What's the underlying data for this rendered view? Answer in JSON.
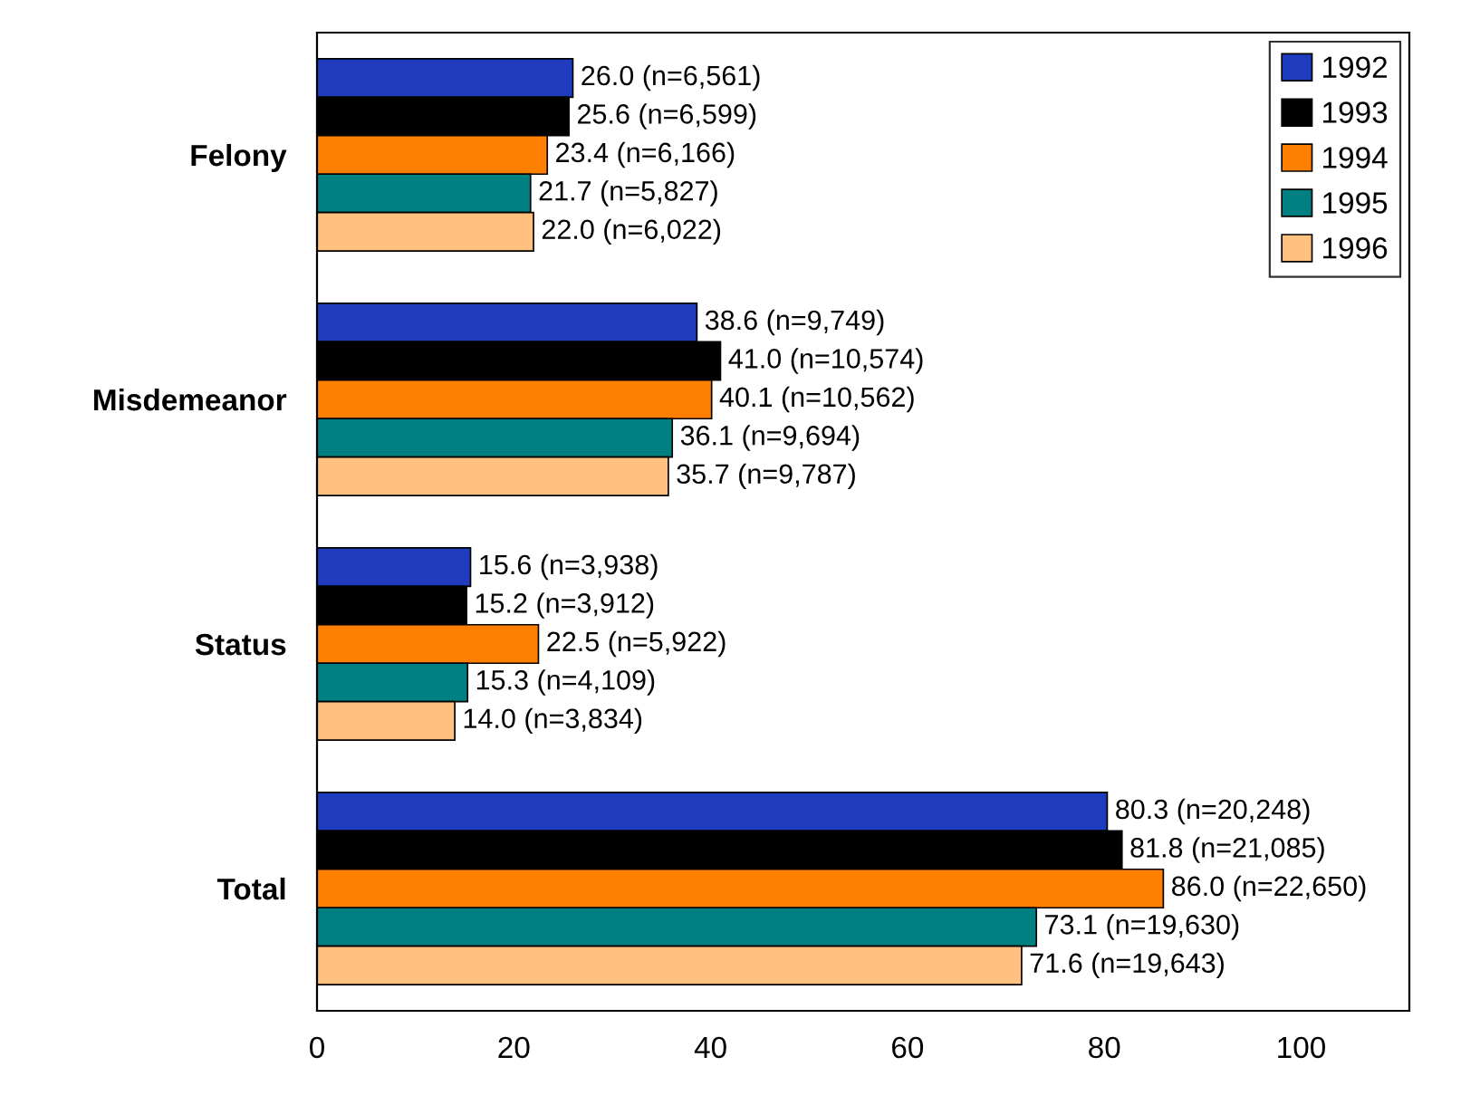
{
  "chart_data": {
    "type": "bar",
    "orientation": "horizontal",
    "categories": [
      "Felony",
      "Misdemeanor",
      "Status",
      "Total"
    ],
    "series": [
      {
        "name": "1992",
        "color": "#1f3cbf",
        "values": [
          26.0,
          38.6,
          15.6,
          80.3
        ],
        "value_labels": [
          "26.0 (n=6,561)",
          "38.6 (n=9,749)",
          "15.6 (n=3,938)",
          "80.3 (n=20,248)"
        ]
      },
      {
        "name": "1993",
        "color": "#000000",
        "values": [
          25.6,
          41.0,
          15.2,
          81.8
        ],
        "value_labels": [
          "25.6 (n=6,599)",
          "41.0 (n=10,574)",
          "15.2 (n=3,912)",
          "81.8 (n=21,085)"
        ]
      },
      {
        "name": "1994",
        "color": "#ff8000",
        "values": [
          23.4,
          40.1,
          22.5,
          86.0
        ],
        "value_labels": [
          "23.4 (n=6,166)",
          "40.1 (n=10,562)",
          "22.5 (n=5,922)",
          "86.0 (n=22,650)"
        ]
      },
      {
        "name": "1995",
        "color": "#008080",
        "values": [
          21.7,
          36.1,
          15.3,
          73.1
        ],
        "value_labels": [
          "21.7 (n=5,827)",
          "36.1 (n=9,694)",
          "15.3 (n=4,109)",
          "73.1 (n=19,630)"
        ]
      },
      {
        "name": "1996",
        "color": "#ffc080",
        "values": [
          22.0,
          35.7,
          14.0,
          71.6
        ],
        "value_labels": [
          "22.0 (n=6,022)",
          "35.7 (n=9,787)",
          "14.0 (n=3,834)",
          "71.6 (n=19,643)"
        ]
      }
    ],
    "xlim": [
      0,
      111
    ],
    "xticks": [
      0,
      20,
      40,
      60,
      80,
      100
    ],
    "grid": false,
    "legend": "top right"
  }
}
